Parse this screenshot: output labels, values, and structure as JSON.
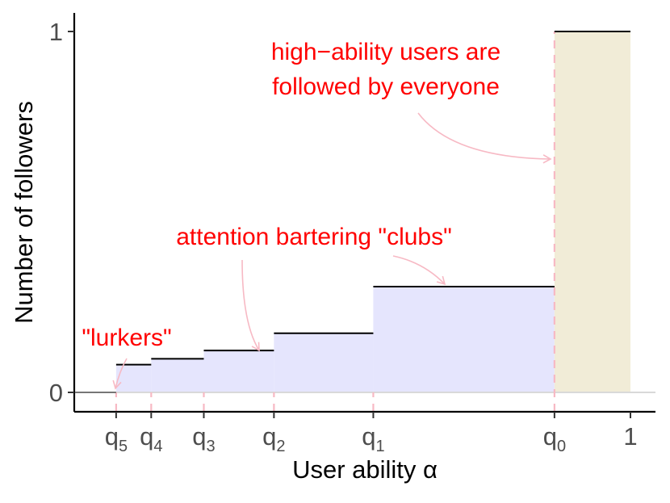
{
  "chart_data": {
    "type": "step",
    "xlabel": "User ability α",
    "ylabel": "Number of followers",
    "xlim": [
      0,
      1
    ],
    "ylim": [
      0,
      1
    ],
    "x_ticks": [
      {
        "base": "q",
        "sub": "5",
        "x": 0.12
      },
      {
        "base": "q",
        "sub": "4",
        "x": 0.18
      },
      {
        "base": "q",
        "sub": "3",
        "x": 0.27
      },
      {
        "base": "q",
        "sub": "2",
        "x": 0.39
      },
      {
        "base": "q",
        "sub": "1",
        "x": 0.56
      },
      {
        "base": "q",
        "sub": "0",
        "x": 0.87
      },
      {
        "base": "1",
        "sub": "",
        "x": 1.0
      }
    ],
    "y_ticks": [
      {
        "label": "0",
        "y": 0
      },
      {
        "label": "1",
        "y": 1
      }
    ],
    "steps": [
      {
        "x0": 0.05,
        "x1": 0.12,
        "y": 0.0,
        "group": "lurkers"
      },
      {
        "x0": 0.12,
        "x1": 0.18,
        "y": 0.077,
        "group": "clubs"
      },
      {
        "x0": 0.18,
        "x1": 0.27,
        "y": 0.093,
        "group": "clubs"
      },
      {
        "x0": 0.27,
        "x1": 0.39,
        "y": 0.116,
        "group": "clubs"
      },
      {
        "x0": 0.39,
        "x1": 0.56,
        "y": 0.164,
        "group": "clubs"
      },
      {
        "x0": 0.56,
        "x1": 0.87,
        "y": 0.293,
        "group": "clubs"
      },
      {
        "x0": 0.87,
        "x1": 1.0,
        "y": 1.0,
        "group": "high"
      }
    ],
    "annotations": [
      {
        "id": "high",
        "lines": [
          "high−ability users are",
          "followed by everyone"
        ]
      },
      {
        "id": "clubs",
        "lines": [
          "attention bartering \"clubs\""
        ]
      },
      {
        "id": "lurkers",
        "lines": [
          "\"lurkers\""
        ]
      }
    ],
    "colors": {
      "club_fill": "#e5e5fd",
      "high_fill": "#f1ecd7",
      "dashed": "#f7b9c4",
      "annotation": "#ff0000",
      "arrow": "#f7b9c4",
      "baseline": "#d9d9d9"
    }
  }
}
